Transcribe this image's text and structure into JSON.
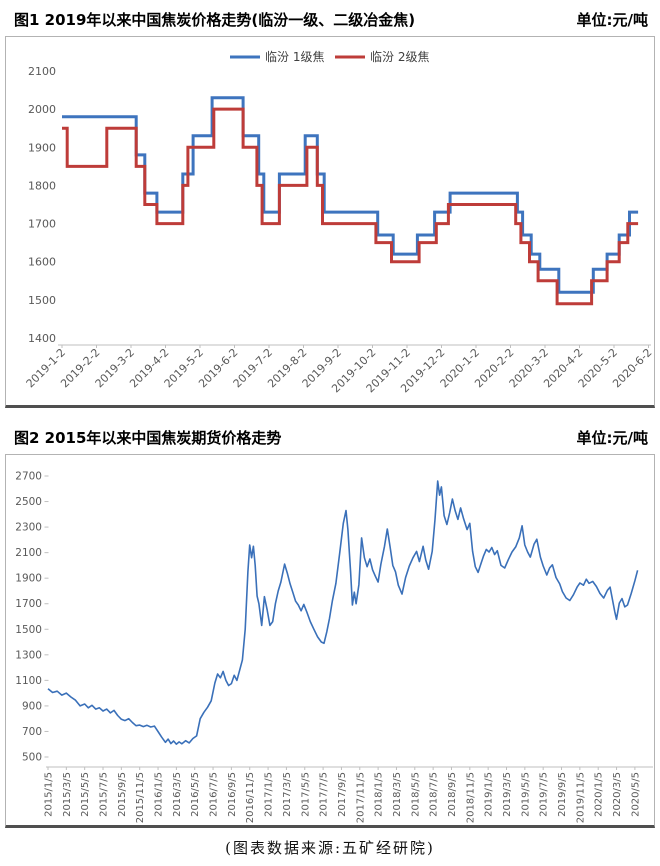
{
  "page": {
    "caption": "(图表数据来源:五矿经研院)"
  },
  "chart_data": [
    {
      "type": "line",
      "subtype": "step",
      "title": "图1 2019年以来中国焦炭价格走势(临汾一级、二级冶金焦)",
      "unit_label": "单位:元/吨",
      "ylabel": "",
      "xlabel": "",
      "ylim": [
        1400,
        2100
      ],
      "y_ticks": [
        2100,
        2000,
        1900,
        1800,
        1700,
        1600,
        1500,
        1400
      ],
      "x_tick_labels": [
        "2019-1-2",
        "2019-2-2",
        "2019-3-2",
        "2019-4-2",
        "2019-5-2",
        "2019-6-2",
        "2019-7-2",
        "2019-8-2",
        "2019-9-2",
        "2019-10-2",
        "2019-11-2",
        "2019-12-2",
        "2020-1-2",
        "2020-2-2",
        "2020-3-2",
        "2020-4-2",
        "2020-5-2",
        "2020-6-2"
      ],
      "x_axis_note": "x unit = months since 2019-1-2 tick",
      "x_span_months": 17.1,
      "line_end_month": 16.7,
      "grid": false,
      "legend_position": "top-center",
      "axis_color": "#bfbfbf",
      "tick_label_color": "#595959",
      "series": [
        {
          "name": "临汾 1级焦",
          "color": "#3e74be",
          "steps": [
            [
              0,
              1980
            ],
            [
              2.15,
              1880
            ],
            [
              2.4,
              1780
            ],
            [
              2.75,
              1730
            ],
            [
              3.5,
              1830
            ],
            [
              3.8,
              1930
            ],
            [
              4.35,
              2030
            ],
            [
              5.25,
              1930
            ],
            [
              5.7,
              1830
            ],
            [
              5.85,
              1730
            ],
            [
              6.3,
              1830
            ],
            [
              7.05,
              1930
            ],
            [
              7.4,
              1830
            ],
            [
              7.6,
              1730
            ],
            [
              9.15,
              1670
            ],
            [
              9.6,
              1620
            ],
            [
              10.3,
              1670
            ],
            [
              10.8,
              1730
            ],
            [
              11.25,
              1780
            ],
            [
              13.2,
              1730
            ],
            [
              13.35,
              1670
            ],
            [
              13.6,
              1620
            ],
            [
              13.85,
              1580
            ],
            [
              14.4,
              1520
            ],
            [
              15.4,
              1580
            ],
            [
              15.8,
              1620
            ],
            [
              16.15,
              1670
            ],
            [
              16.45,
              1730
            ]
          ]
        },
        {
          "name": "临汾 2级焦",
          "color": "#be3c39",
          "steps": [
            [
              0,
              1950
            ],
            [
              0.15,
              1850
            ],
            [
              1.3,
              1950
            ],
            [
              2.15,
              1850
            ],
            [
              2.4,
              1750
            ],
            [
              2.75,
              1700
            ],
            [
              3.5,
              1800
            ],
            [
              3.65,
              1900
            ],
            [
              4.4,
              2000
            ],
            [
              5.25,
              1900
            ],
            [
              5.65,
              1800
            ],
            [
              5.8,
              1700
            ],
            [
              6.3,
              1800
            ],
            [
              7.1,
              1900
            ],
            [
              7.4,
              1800
            ],
            [
              7.55,
              1700
            ],
            [
              9.1,
              1650
            ],
            [
              9.55,
              1600
            ],
            [
              10.35,
              1650
            ],
            [
              10.85,
              1700
            ],
            [
              11.2,
              1750
            ],
            [
              13.15,
              1700
            ],
            [
              13.3,
              1650
            ],
            [
              13.55,
              1600
            ],
            [
              13.8,
              1550
            ],
            [
              14.35,
              1490
            ],
            [
              15.35,
              1550
            ],
            [
              15.8,
              1600
            ],
            [
              16.15,
              1650
            ],
            [
              16.4,
              1700
            ]
          ]
        }
      ]
    },
    {
      "type": "line",
      "title": "图2 2015年以来中国焦炭期货价格走势",
      "unit_label": "单位:元/吨",
      "ylabel": "",
      "xlabel": "",
      "ylim": [
        500,
        2700
      ],
      "y_ticks": [
        2700,
        2500,
        2300,
        2100,
        1900,
        1700,
        1500,
        1300,
        1100,
        900,
        700,
        500
      ],
      "x_tick_labels": [
        "2015/1/5",
        "2015/3/5",
        "2015/5/5",
        "2015/7/5",
        "2015/9/5",
        "2015/11/5",
        "2016/1/5",
        "2016/3/5",
        "2016/5/5",
        "2016/7/5",
        "2016/9/5",
        "2016/11/5",
        "2017/1/5",
        "2017/3/5",
        "2017/5/5",
        "2017/7/5",
        "2017/9/5",
        "2017/11/5",
        "2018/1/5",
        "2018/3/5",
        "2018/5/5",
        "2018/7/5",
        "2018/9/5",
        "2018/11/5",
        "2019/1/5",
        "2019/3/5",
        "2019/5/5",
        "2019/7/5",
        "2019/9/5",
        "2019/11/5",
        "2020/1/5",
        "2020/3/5",
        "2020/5/5"
      ],
      "x_axis_note": "x unit = months since 2015/1/5 tick; ticks every 2 months",
      "x_span_months": 66,
      "grid": false,
      "axis_color": "#bfbfbf",
      "tick_label_color": "#595959",
      "series": [
        {
          "color": "#3a70b9",
          "points": [
            [
              0,
              1035
            ],
            [
              0.5,
              1005
            ],
            [
              1,
              1015
            ],
            [
              1.5,
              985
            ],
            [
              2,
              1000
            ],
            [
              2.5,
              970
            ],
            [
              3,
              945
            ],
            [
              3.5,
              900
            ],
            [
              4,
              915
            ],
            [
              4.4,
              885
            ],
            [
              4.8,
              905
            ],
            [
              5.2,
              875
            ],
            [
              5.6,
              885
            ],
            [
              6,
              860
            ],
            [
              6.4,
              875
            ],
            [
              6.8,
              845
            ],
            [
              7.2,
              865
            ],
            [
              7.6,
              825
            ],
            [
              8,
              795
            ],
            [
              8.4,
              785
            ],
            [
              8.8,
              800
            ],
            [
              9.2,
              770
            ],
            [
              9.6,
              745
            ],
            [
              10,
              750
            ],
            [
              10.4,
              738
            ],
            [
              10.8,
              748
            ],
            [
              11.2,
              735
            ],
            [
              11.6,
              742
            ],
            [
              12,
              700
            ],
            [
              12.4,
              655
            ],
            [
              12.8,
              615
            ],
            [
              13.1,
              640
            ],
            [
              13.4,
              605
            ],
            [
              13.7,
              625
            ],
            [
              14,
              600
            ],
            [
              14.3,
              618
            ],
            [
              14.6,
              603
            ],
            [
              15,
              628
            ],
            [
              15.4,
              610
            ],
            [
              15.8,
              645
            ],
            [
              16.2,
              665
            ],
            [
              16.6,
              800
            ],
            [
              17,
              850
            ],
            [
              17.4,
              890
            ],
            [
              17.8,
              940
            ],
            [
              18.2,
              1080
            ],
            [
              18.5,
              1150
            ],
            [
              18.8,
              1120
            ],
            [
              19.1,
              1170
            ],
            [
              19.4,
              1100
            ],
            [
              19.7,
              1060
            ],
            [
              20,
              1075
            ],
            [
              20.3,
              1140
            ],
            [
              20.6,
              1100
            ],
            [
              20.9,
              1180
            ],
            [
              21.2,
              1260
            ],
            [
              21.5,
              1500
            ],
            [
              21.8,
              1950
            ],
            [
              22,
              2160
            ],
            [
              22.2,
              2060
            ],
            [
              22.4,
              2150
            ],
            [
              22.6,
              2000
            ],
            [
              22.8,
              1760
            ],
            [
              23,
              1700
            ],
            [
              23.3,
              1530
            ],
            [
              23.6,
              1755
            ],
            [
              23.9,
              1650
            ],
            [
              24.2,
              1530
            ],
            [
              24.5,
              1560
            ],
            [
              24.8,
              1700
            ],
            [
              25.1,
              1800
            ],
            [
              25.4,
              1870
            ],
            [
              25.8,
              2010
            ],
            [
              26.1,
              1940
            ],
            [
              26.4,
              1855
            ],
            [
              26.7,
              1790
            ],
            [
              27,
              1720
            ],
            [
              27.3,
              1690
            ],
            [
              27.6,
              1645
            ],
            [
              27.9,
              1695
            ],
            [
              28.2,
              1640
            ],
            [
              28.6,
              1560
            ],
            [
              29,
              1500
            ],
            [
              29.4,
              1440
            ],
            [
              29.8,
              1400
            ],
            [
              30.1,
              1390
            ],
            [
              30.4,
              1480
            ],
            [
              30.7,
              1585
            ],
            [
              31,
              1720
            ],
            [
              31.4,
              1860
            ],
            [
              31.8,
              2090
            ],
            [
              32.2,
              2330
            ],
            [
              32.5,
              2430
            ],
            [
              32.7,
              2280
            ],
            [
              33,
              1950
            ],
            [
              33.2,
              1690
            ],
            [
              33.4,
              1790
            ],
            [
              33.6,
              1700
            ],
            [
              33.9,
              1850
            ],
            [
              34.2,
              2215
            ],
            [
              34.5,
              2060
            ],
            [
              34.8,
              1990
            ],
            [
              35.1,
              2050
            ],
            [
              35.4,
              1965
            ],
            [
              35.7,
              1915
            ],
            [
              36,
              1870
            ],
            [
              36.3,
              2010
            ],
            [
              36.7,
              2150
            ],
            [
              37,
              2285
            ],
            [
              37.3,
              2150
            ],
            [
              37.6,
              2000
            ],
            [
              37.9,
              1950
            ],
            [
              38.2,
              1845
            ],
            [
              38.6,
              1775
            ],
            [
              39,
              1905
            ],
            [
              39.4,
              1995
            ],
            [
              39.8,
              2060
            ],
            [
              40.2,
              2110
            ],
            [
              40.5,
              2030
            ],
            [
              40.9,
              2150
            ],
            [
              41.2,
              2040
            ],
            [
              41.5,
              1970
            ],
            [
              41.9,
              2110
            ],
            [
              42.2,
              2360
            ],
            [
              42.5,
              2660
            ],
            [
              42.7,
              2550
            ],
            [
              42.9,
              2615
            ],
            [
              43.2,
              2390
            ],
            [
              43.5,
              2320
            ],
            [
              43.8,
              2410
            ],
            [
              44.1,
              2520
            ],
            [
              44.4,
              2430
            ],
            [
              44.7,
              2360
            ],
            [
              45,
              2450
            ],
            [
              45.3,
              2370
            ],
            [
              45.7,
              2280
            ],
            [
              46,
              2330
            ],
            [
              46.3,
              2110
            ],
            [
              46.6,
              1990
            ],
            [
              46.9,
              1945
            ],
            [
              47.2,
              2010
            ],
            [
              47.5,
              2075
            ],
            [
              47.8,
              2125
            ],
            [
              48.1,
              2105
            ],
            [
              48.4,
              2140
            ],
            [
              48.7,
              2085
            ],
            [
              49,
              2115
            ],
            [
              49.4,
              2000
            ],
            [
              49.8,
              1980
            ],
            [
              50.2,
              2045
            ],
            [
              50.6,
              2105
            ],
            [
              51,
              2145
            ],
            [
              51.4,
              2215
            ],
            [
              51.7,
              2310
            ],
            [
              52,
              2160
            ],
            [
              52.3,
              2105
            ],
            [
              52.6,
              2065
            ],
            [
              53,
              2165
            ],
            [
              53.3,
              2205
            ],
            [
              53.7,
              2065
            ],
            [
              54,
              1995
            ],
            [
              54.4,
              1925
            ],
            [
              54.7,
              1980
            ],
            [
              55,
              2005
            ],
            [
              55.4,
              1905
            ],
            [
              55.8,
              1855
            ],
            [
              56.1,
              1795
            ],
            [
              56.5,
              1745
            ],
            [
              56.9,
              1725
            ],
            [
              57.3,
              1770
            ],
            [
              57.7,
              1830
            ],
            [
              58,
              1862
            ],
            [
              58.4,
              1845
            ],
            [
              58.7,
              1892
            ],
            [
              59,
              1860
            ],
            [
              59.4,
              1875
            ],
            [
              59.8,
              1835
            ],
            [
              60.2,
              1780
            ],
            [
              60.6,
              1745
            ],
            [
              61,
              1805
            ],
            [
              61.3,
              1830
            ],
            [
              61.8,
              1640
            ],
            [
              62,
              1578
            ],
            [
              62.3,
              1705
            ],
            [
              62.6,
              1740
            ],
            [
              62.9,
              1675
            ],
            [
              63.2,
              1690
            ],
            [
              63.6,
              1780
            ],
            [
              64,
              1880
            ],
            [
              64.3,
              1962
            ]
          ]
        }
      ]
    }
  ]
}
